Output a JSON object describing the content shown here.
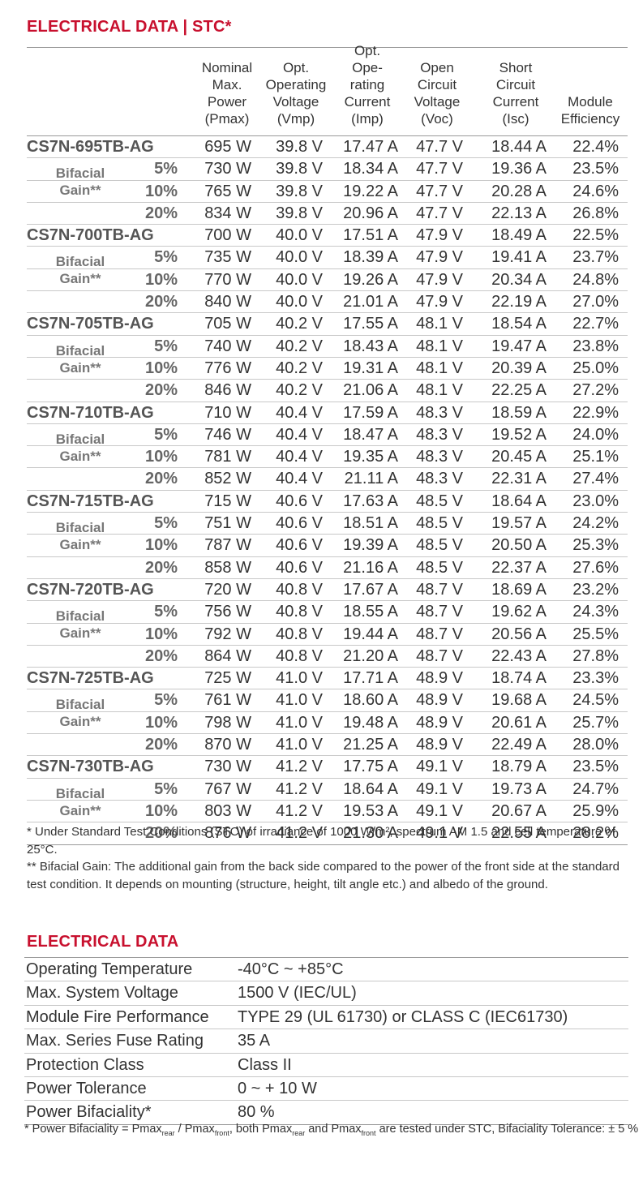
{
  "section1_title": "ELECTRICAL DATA | STC*",
  "headers": [
    "Nominal\nMax.\nPower\n(Pmax)",
    "Opt.\nOperating\nVoltage\n(Vmp)",
    "Opt.\nOpe-\nrating\nCurrent\n(Imp)",
    "Open\nCircuit\nVoltage\n(Voc)",
    "Short\nCircuit\nCurrent\n(Isc)",
    "Module\nEfficiency"
  ],
  "bifacial_label": "Bifacial\nGain**",
  "models": [
    {
      "name": "CS7N-695TB-AG",
      "rows": [
        {
          "gain": "",
          "pmax": "695 W",
          "vmp": "39.8 V",
          "imp": "17.47 A",
          "voc": "47.7 V",
          "isc": "18.44 A",
          "eff": "22.4%"
        },
        {
          "gain": "5%",
          "pmax": "730 W",
          "vmp": "39.8 V",
          "imp": "18.34 A",
          "voc": "47.7 V",
          "isc": "19.36 A",
          "eff": "23.5%"
        },
        {
          "gain": "10%",
          "pmax": "765 W",
          "vmp": "39.8 V",
          "imp": "19.22 A",
          "voc": "47.7 V",
          "isc": "20.28 A",
          "eff": "24.6%"
        },
        {
          "gain": "20%",
          "pmax": "834 W",
          "vmp": "39.8 V",
          "imp": "20.96 A",
          "voc": "47.7 V",
          "isc": "22.13 A",
          "eff": "26.8%"
        }
      ]
    },
    {
      "name": "CS7N-700TB-AG",
      "rows": [
        {
          "gain": "",
          "pmax": "700 W",
          "vmp": "40.0 V",
          "imp": "17.51 A",
          "voc": "47.9 V",
          "isc": "18.49 A",
          "eff": "22.5%"
        },
        {
          "gain": "5%",
          "pmax": "735 W",
          "vmp": "40.0 V",
          "imp": "18.39 A",
          "voc": "47.9 V",
          "isc": "19.41 A",
          "eff": "23.7%"
        },
        {
          "gain": "10%",
          "pmax": "770 W",
          "vmp": "40.0 V",
          "imp": "19.26 A",
          "voc": "47.9 V",
          "isc": "20.34 A",
          "eff": "24.8%"
        },
        {
          "gain": "20%",
          "pmax": "840 W",
          "vmp": "40.0 V",
          "imp": "21.01 A",
          "voc": "47.9 V",
          "isc": "22.19 A",
          "eff": "27.0%"
        }
      ]
    },
    {
      "name": "CS7N-705TB-AG",
      "rows": [
        {
          "gain": "",
          "pmax": "705 W",
          "vmp": "40.2 V",
          "imp": "17.55 A",
          "voc": "48.1 V",
          "isc": "18.54 A",
          "eff": "22.7%"
        },
        {
          "gain": "5%",
          "pmax": "740 W",
          "vmp": "40.2 V",
          "imp": "18.43 A",
          "voc": "48.1 V",
          "isc": "19.47 A",
          "eff": "23.8%"
        },
        {
          "gain": "10%",
          "pmax": "776 W",
          "vmp": "40.2 V",
          "imp": "19.31 A",
          "voc": "48.1 V",
          "isc": "20.39 A",
          "eff": "25.0%"
        },
        {
          "gain": "20%",
          "pmax": "846 W",
          "vmp": "40.2 V",
          "imp": "21.06 A",
          "voc": "48.1 V",
          "isc": "22.25 A",
          "eff": "27.2%"
        }
      ]
    },
    {
      "name": "CS7N-710TB-AG",
      "rows": [
        {
          "gain": "",
          "pmax": "710 W",
          "vmp": "40.4 V",
          "imp": "17.59 A",
          "voc": "48.3 V",
          "isc": "18.59 A",
          "eff": "22.9%"
        },
        {
          "gain": "5%",
          "pmax": "746 W",
          "vmp": "40.4 V",
          "imp": "18.47 A",
          "voc": "48.3 V",
          "isc": "19.52 A",
          "eff": "24.0%"
        },
        {
          "gain": "10%",
          "pmax": "781 W",
          "vmp": "40.4 V",
          "imp": "19.35 A",
          "voc": "48.3 V",
          "isc": "20.45 A",
          "eff": "25.1%"
        },
        {
          "gain": "20%",
          "pmax": "852 W",
          "vmp": "40.4 V",
          "imp": "21.11 A",
          "voc": "48.3 V",
          "isc": "22.31 A",
          "eff": "27.4%"
        }
      ]
    },
    {
      "name": "CS7N-715TB-AG",
      "rows": [
        {
          "gain": "",
          "pmax": "715 W",
          "vmp": "40.6 V",
          "imp": "17.63 A",
          "voc": "48.5 V",
          "isc": "18.64 A",
          "eff": "23.0%"
        },
        {
          "gain": "5%",
          "pmax": "751 W",
          "vmp": "40.6 V",
          "imp": "18.51 A",
          "voc": "48.5 V",
          "isc": "19.57 A",
          "eff": "24.2%"
        },
        {
          "gain": "10%",
          "pmax": "787 W",
          "vmp": "40.6 V",
          "imp": "19.39 A",
          "voc": "48.5 V",
          "isc": "20.50 A",
          "eff": "25.3%"
        },
        {
          "gain": "20%",
          "pmax": "858 W",
          "vmp": "40.6 V",
          "imp": "21.16 A",
          "voc": "48.5 V",
          "isc": "22.37 A",
          "eff": "27.6%"
        }
      ]
    },
    {
      "name": "CS7N-720TB-AG",
      "rows": [
        {
          "gain": "",
          "pmax": "720 W",
          "vmp": "40.8 V",
          "imp": "17.67 A",
          "voc": "48.7 V",
          "isc": "18.69 A",
          "eff": "23.2%"
        },
        {
          "gain": "5%",
          "pmax": "756 W",
          "vmp": "40.8 V",
          "imp": "18.55 A",
          "voc": "48.7 V",
          "isc": "19.62 A",
          "eff": "24.3%"
        },
        {
          "gain": "10%",
          "pmax": "792 W",
          "vmp": "40.8 V",
          "imp": "19.44 A",
          "voc": "48.7 V",
          "isc": "20.56 A",
          "eff": "25.5%"
        },
        {
          "gain": "20%",
          "pmax": "864 W",
          "vmp": "40.8 V",
          "imp": "21.20 A",
          "voc": "48.7 V",
          "isc": "22.43 A",
          "eff": "27.8%"
        }
      ]
    },
    {
      "name": "CS7N-725TB-AG",
      "rows": [
        {
          "gain": "",
          "pmax": "725 W",
          "vmp": "41.0 V",
          "imp": "17.71 A",
          "voc": "48.9 V",
          "isc": "18.74 A",
          "eff": "23.3%"
        },
        {
          "gain": "5%",
          "pmax": "761 W",
          "vmp": "41.0 V",
          "imp": "18.60 A",
          "voc": "48.9 V",
          "isc": "19.68 A",
          "eff": "24.5%"
        },
        {
          "gain": "10%",
          "pmax": "798 W",
          "vmp": "41.0 V",
          "imp": "19.48 A",
          "voc": "48.9 V",
          "isc": "20.61 A",
          "eff": "25.7%"
        },
        {
          "gain": "20%",
          "pmax": "870 W",
          "vmp": "41.0 V",
          "imp": "21.25 A",
          "voc": "48.9 V",
          "isc": "22.49 A",
          "eff": "28.0%"
        }
      ]
    },
    {
      "name": "CS7N-730TB-AG",
      "rows": [
        {
          "gain": "",
          "pmax": "730 W",
          "vmp": "41.2 V",
          "imp": "17.75 A",
          "voc": "49.1 V",
          "isc": "18.79 A",
          "eff": "23.5%"
        },
        {
          "gain": "5%",
          "pmax": "767 W",
          "vmp": "41.2 V",
          "imp": "18.64 A",
          "voc": "49.1 V",
          "isc": "19.73 A",
          "eff": "24.7%"
        },
        {
          "gain": "10%",
          "pmax": "803 W",
          "vmp": "41.2 V",
          "imp": "19.53 A",
          "voc": "49.1 V",
          "isc": "20.67 A",
          "eff": "25.9%"
        },
        {
          "gain": "20%",
          "pmax": "876 W",
          "vmp": "41.2 V",
          "imp": "21.30 A",
          "voc": "49.1 V",
          "isc": "22.55 A",
          "eff": "28.2%"
        }
      ]
    }
  ],
  "footnote1": "* Under Standard Test Conditions (STC) of irradiance of 1000 W/m², spectrum AM 1.5 and cell temperature of 25°C.",
  "footnote2": "** Bifacial Gain: The additional gain from the back side compared to the power of the front side at the standard test condition. It depends on mounting (structure, height, tilt angle etc.) and albedo of the ground.",
  "section2_title": "ELECTRICAL DATA",
  "electrical": [
    {
      "key": "Operating Temperature",
      "value": "-40°C ~ +85°C"
    },
    {
      "key": "Max. System Voltage",
      "value": "1500 V  (IEC/UL)"
    },
    {
      "key": "Module Fire Performance",
      "value": "TYPE 29 (UL 61730) or CLASS C (IEC61730)"
    },
    {
      "key": "Max. Series Fuse Rating",
      "value": "35 A"
    },
    {
      "key": "Protection Class",
      "value": "Class II"
    },
    {
      "key": "Power Tolerance",
      "value": "0 ~ + 10 W"
    },
    {
      "key": "Power Bifaciality*",
      "value": "80 %"
    }
  ],
  "footnote3": {
    "prefix": "* Power Bifaciality = Pmax",
    "rear": "rear",
    "slash": " / Pmax",
    "front": "front",
    "mid": ", both Pmax",
    "rear2": "rear",
    "and": " and Pmax",
    "front2": "front",
    "suffix": " are tested under STC, Bifaciality Tolerance: ± 5 %"
  }
}
